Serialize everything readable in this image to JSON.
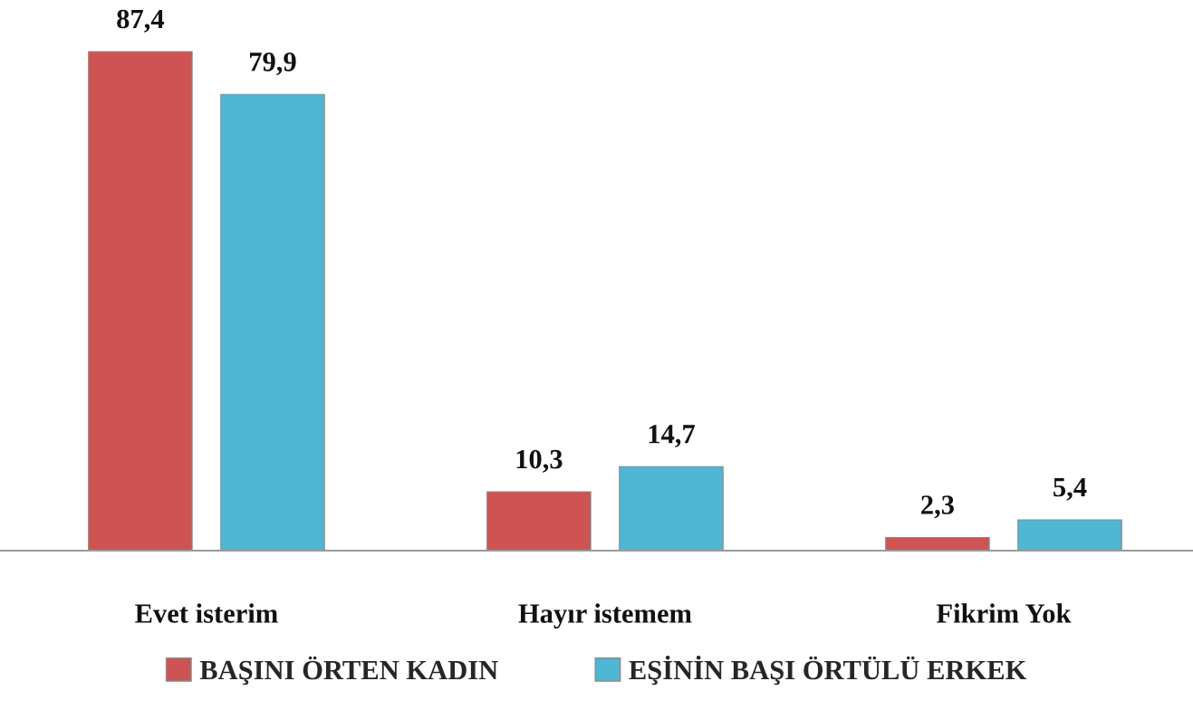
{
  "chart_data": {
    "type": "bar",
    "categories": [
      "Evet isterim",
      "Hayır istemem",
      "Fikrim Yok"
    ],
    "series": [
      {
        "name": "BAŞINI ÖRTEN KADIN",
        "color": "#cd5452",
        "values": [
          87.4,
          10.3,
          2.3
        ],
        "value_labels": [
          "87,4",
          "10,3",
          "2,3"
        ]
      },
      {
        "name": "EŞİNİN BAŞI ÖRTÜLÜ ERKEK",
        "color": "#4fb6d3",
        "values": [
          79.9,
          14.7,
          5.4
        ],
        "value_labels": [
          "79,9",
          "14,7",
          "5,4"
        ]
      }
    ],
    "legend": "bottom",
    "grid": false
  }
}
